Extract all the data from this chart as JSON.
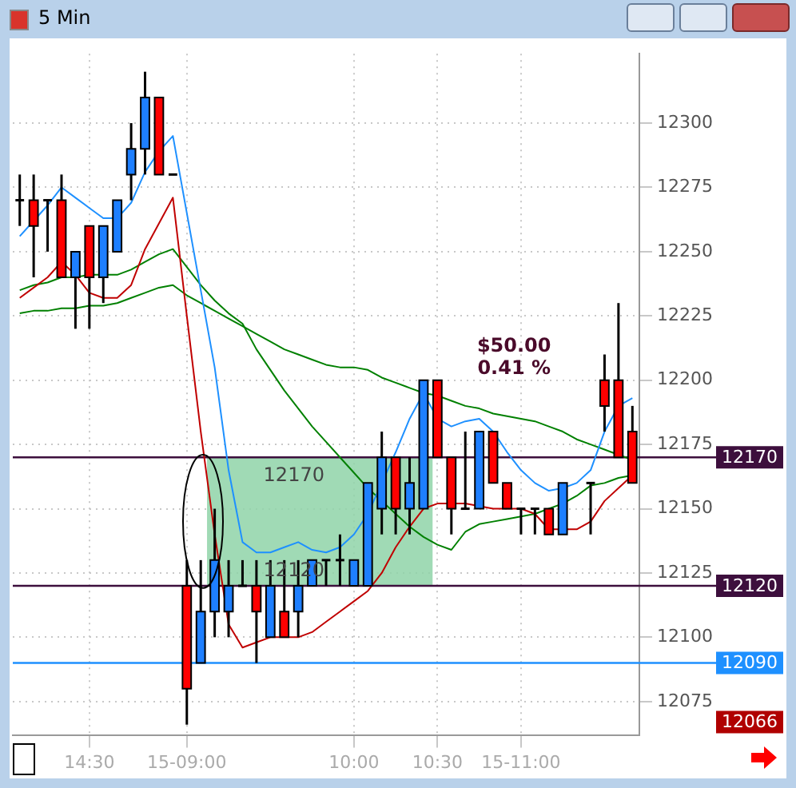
{
  "chart_data": {
    "type": "candlestick",
    "title": "5 Min",
    "categories": [
      null,
      null,
      null,
      null,
      null,
      "14:30",
      null,
      null,
      null,
      null,
      null,
      null,
      "15-09:00",
      null,
      null,
      null,
      null,
      null,
      null,
      null,
      null,
      null,
      null,
      null,
      "10:00",
      null,
      null,
      null,
      null,
      null,
      "10:30",
      null,
      null,
      null,
      null,
      null,
      "15-11:00",
      null,
      null,
      null,
      null,
      null,
      null,
      null,
      null
    ],
    "ohlc": [
      [
        12270,
        12280,
        12260,
        12270
      ],
      [
        12270,
        12280,
        12240,
        12260
      ],
      [
        12270,
        12270,
        12250,
        12270
      ],
      [
        12270,
        12280,
        12240,
        12240
      ],
      [
        12240,
        12250,
        12220,
        12250
      ],
      [
        12260,
        12260,
        12220,
        12240
      ],
      [
        12240,
        12260,
        12230,
        12260
      ],
      [
        12250,
        12270,
        12250,
        12270
      ],
      [
        12280,
        12300,
        12270,
        12290
      ],
      [
        12290,
        12320,
        12280,
        12310
      ],
      [
        12310,
        12310,
        12280,
        12280
      ],
      [
        12280,
        12280,
        12280,
        12280
      ],
      [
        12120,
        12130,
        12066,
        12080
      ],
      [
        12090,
        12130,
        12090,
        12110
      ],
      [
        12110,
        12150,
        12100,
        12130
      ],
      [
        12110,
        12130,
        12100,
        12120
      ],
      [
        12120,
        12130,
        12120,
        12120
      ],
      [
        12120,
        12130,
        12090,
        12110
      ],
      [
        12100,
        12130,
        12100,
        12120
      ],
      [
        12110,
        12130,
        12100,
        12100
      ],
      [
        12110,
        12130,
        12100,
        12120
      ],
      [
        12120,
        12130,
        12120,
        12130
      ],
      [
        12130,
        12130,
        12120,
        12130
      ],
      [
        12130,
        12140,
        12120,
        12130
      ],
      [
        12120,
        12130,
        12120,
        12130
      ],
      [
        12120,
        12160,
        12120,
        12160
      ],
      [
        12150,
        12180,
        12140,
        12170
      ],
      [
        12170,
        12170,
        12140,
        12150
      ],
      [
        12150,
        12170,
        12140,
        12160
      ],
      [
        12150,
        12200,
        12150,
        12200
      ],
      [
        12200,
        12200,
        12170,
        12170
      ],
      [
        12170,
        12170,
        12140,
        12150
      ],
      [
        12150,
        12180,
        12150,
        12150
      ],
      [
        12150,
        12180,
        12150,
        12180
      ],
      [
        12180,
        12180,
        12160,
        12160
      ],
      [
        12160,
        12160,
        12150,
        12150
      ],
      [
        12150,
        12150,
        12140,
        12150
      ],
      [
        12150,
        12150,
        12140,
        12150
      ],
      [
        12150,
        12150,
        12140,
        12140
      ],
      [
        12140,
        12160,
        12140,
        12160
      ],
      null,
      [
        12160,
        12160,
        12140,
        12160
      ],
      [
        12200,
        12210,
        12180,
        12190
      ],
      [
        12200,
        12230,
        12170,
        12170
      ],
      [
        12180,
        12190,
        12160,
        12160
      ]
    ],
    "colors": [
      "#000000",
      "#ff0000",
      "#000000",
      "#ff0000",
      "#1e7fff",
      "#ff0000",
      "#1e7fff",
      "#1e7fff",
      "#1e7fff",
      "#1e7fff",
      "#ff0000",
      "#000000",
      "#ff0000",
      "#1e7fff",
      "#1e7fff",
      "#1e7fff",
      "#000000",
      "#ff0000",
      "#1e7fff",
      "#ff0000",
      "#1e7fff",
      "#1e7fff",
      "#000000",
      "#000000",
      "#1e7fff",
      "#1e7fff",
      "#1e7fff",
      "#ff0000",
      "#1e7fff",
      "#1e7fff",
      "#ff0000",
      "#ff0000",
      "#000000",
      "#1e7fff",
      "#ff0000",
      "#ff0000",
      "#000000",
      "#000000",
      "#ff0000",
      "#1e7fff",
      null,
      "#000000",
      "#ff0000",
      "#ff0000",
      "#ff0000"
    ],
    "series": [
      {
        "type": "line",
        "color": "#1e90ff",
        "values": [
          12256,
          12262,
          12268,
          12275,
          12271,
          12267,
          12263,
          12263,
          12269,
          12281,
          12289,
          12295,
          12265,
          12235,
          12205,
          12165,
          12137,
          12133,
          12133,
          12135,
          12137,
          12134,
          12133,
          12135,
          12140,
          12148,
          12160,
          12172,
          12185,
          12195,
          12185,
          12182,
          12184,
          12185,
          12180,
          12172,
          12165,
          12160,
          12157,
          12158,
          12160,
          12165,
          12180,
          12190,
          12193
        ]
      },
      {
        "type": "line",
        "color": "#c00000",
        "values": [
          12232,
          12236,
          12240,
          12246,
          12241,
          12234,
          12232,
          12232,
          12237,
          12251,
          12261,
          12271,
          12225,
          12180,
          12140,
          12105,
          12096,
          12098,
          12100,
          12100,
          12100,
          12102,
          12106,
          12110,
          12114,
          12118,
          12125,
          12135,
          12143,
          12150,
          12152,
          12152,
          12152,
          12151,
          12150,
          12150,
          12150,
          12148,
          12142,
          12142,
          12142,
          12145,
          12153,
          12158,
          12163
        ]
      },
      {
        "type": "line",
        "color": "#008000",
        "values": [
          12235,
          12237,
          12238,
          12240,
          12240,
          12241,
          12241,
          12241,
          12243,
          12246,
          12249,
          12251,
          12244,
          12237,
          12231,
          12226,
          12222,
          12212,
          12204,
          12196,
          12189,
          12182,
          12176,
          12170,
          12164,
          12158,
          12153,
          12148,
          12143,
          12139,
          12136,
          12134,
          12141,
          12144,
          12145,
          12146,
          12147,
          12148,
          12150,
          12152,
          12155,
          12159,
          12160,
          12162,
          12163
        ]
      },
      {
        "type": "line",
        "color": "#008000",
        "values": [
          12226,
          12227,
          12227,
          12228,
          12228,
          12229,
          12229,
          12230,
          12232,
          12234,
          12236,
          12237,
          12233,
          12230,
          12227,
          12224,
          12221,
          12218,
          12215,
          12212,
          12210,
          12208,
          12206,
          12205,
          12205,
          12204,
          12201,
          12199,
          12197,
          12195,
          12194,
          12192,
          12190,
          12189,
          12187,
          12186,
          12185,
          12184,
          12182,
          12180,
          12177,
          12175,
          12173,
          12171,
          12169
        ]
      }
    ],
    "ylim": [
      12062,
      12327
    ],
    "yticks": [
      12075,
      12100,
      12125,
      12150,
      12175,
      12200,
      12225,
      12250,
      12275,
      12300
    ],
    "grid": true,
    "legend": false,
    "marker": "none",
    "line_style": "solid",
    "ref_lines": [
      {
        "axis": "y",
        "value": 12170,
        "label": "12170",
        "color": "#3d0f3d",
        "line_style": "solid"
      },
      {
        "axis": "y",
        "value": 12120,
        "label": "12120",
        "color": "#3d0f3d",
        "line_style": "solid"
      },
      {
        "axis": "y",
        "value": 12090,
        "label": "12090",
        "color": "#1e90ff",
        "line_style": "solid"
      }
    ],
    "bands": [
      {
        "axis": "y",
        "from": 12120,
        "to": 12170,
        "color": "#8fd3a8"
      }
    ],
    "annotations": [
      "12170",
      "12120",
      "12066",
      "$50.00",
      "0.41 %"
    ]
  }
}
